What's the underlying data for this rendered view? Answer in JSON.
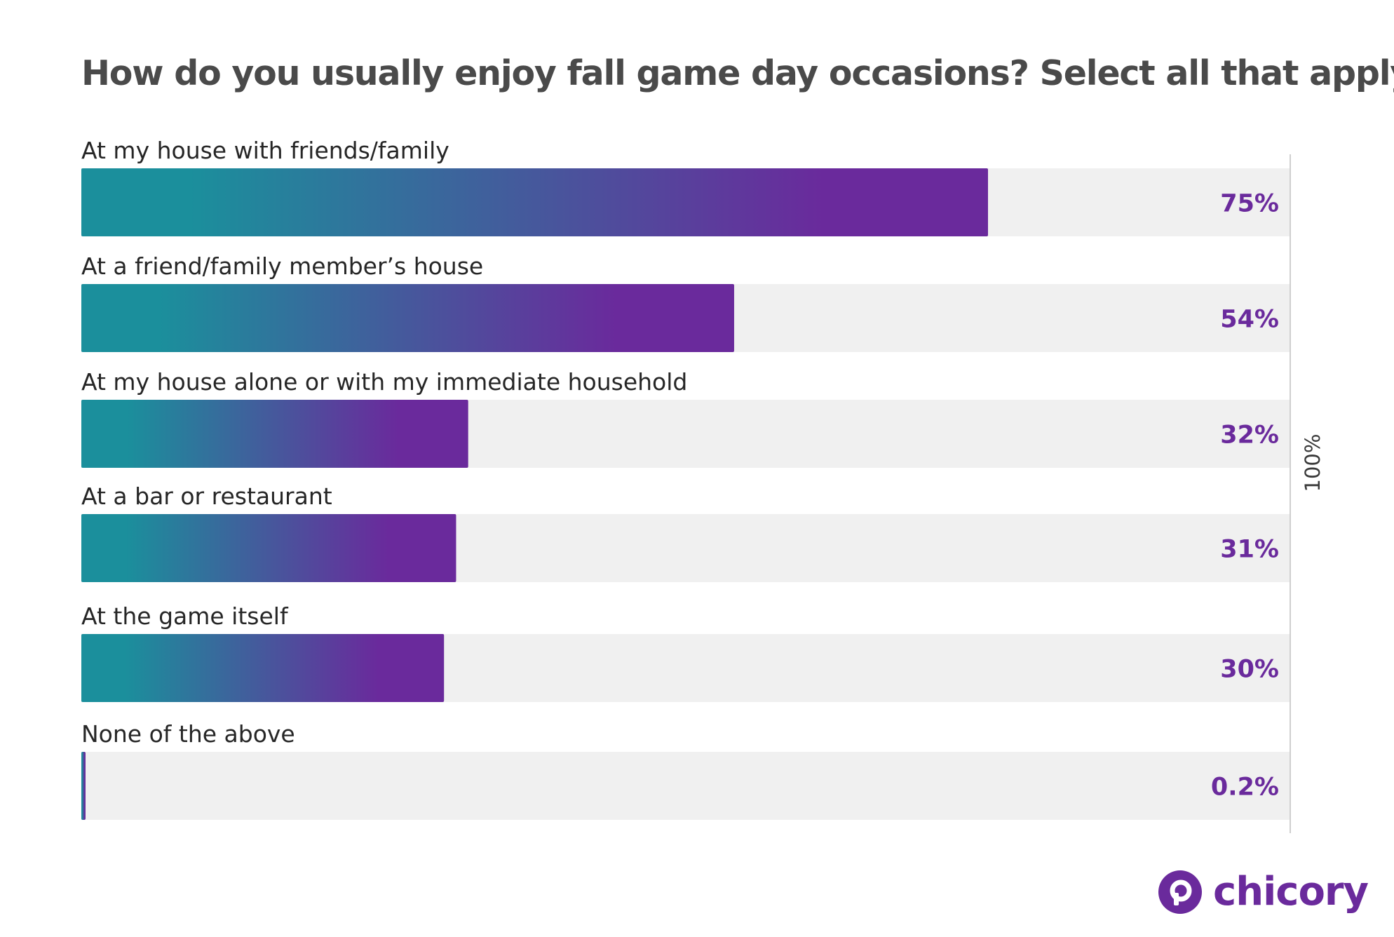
{
  "chart_data": {
    "type": "bar",
    "orientation": "horizontal",
    "title": "How do you usually enjoy fall game day occasions? Select all that apply.",
    "categories": [
      "At my house with friends/family",
      "At a friend/family member’s house",
      "At my house alone or with my immediate household",
      "At a bar or restaurant",
      "At the game itself",
      "None of the above"
    ],
    "values": [
      75,
      54,
      32,
      31,
      30,
      0.2
    ],
    "value_labels": [
      "75%",
      "54%",
      "32%",
      "31%",
      "30%",
      "0.2%"
    ],
    "xlim": [
      0,
      100
    ],
    "reference_line": {
      "value": 100,
      "label": "100%"
    },
    "colors": {
      "bar_gradient_start": "#1b8f9c",
      "bar_gradient_end": "#6a2a9c",
      "track": "#f0f0f0",
      "value_text": "#6a2a9c",
      "title_text": "#4a4a4a"
    },
    "grid": false,
    "legend": "none"
  },
  "brand": {
    "name": "chicory",
    "color": "#6a2a9c",
    "icon": "chicory-logo-icon"
  }
}
